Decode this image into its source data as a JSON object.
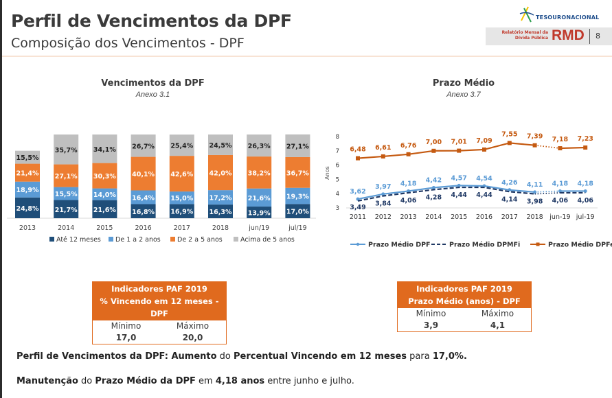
{
  "header": {
    "title": "Perfil de Vencimentos da DPF",
    "subtitle": "Composição dos Vencimentos - DPF",
    "logo_text": "TESOURONACIONAL",
    "report_name_line1": "Relatório Mensal da",
    "report_name_line2": "Dívida Pública",
    "report_acronym": "RMD",
    "page_number": "8"
  },
  "chart_data": [
    {
      "type": "bar",
      "stacked": true,
      "title": "Vencimentos da DPF",
      "subtitle": "Anexo 3.1",
      "categories": [
        "2013",
        "2014",
        "2015",
        "2016",
        "2017",
        "2018",
        "jun/19",
        "jul/19"
      ],
      "series": [
        {
          "name": "Até 12 meses",
          "color": "#1f4e79",
          "values": [
            24.8,
            21.7,
            21.6,
            16.8,
            16.9,
            16.3,
            13.9,
            17.0
          ],
          "labels": [
            "24,8%",
            "21,7%",
            "21,6%",
            "16,8%",
            "16,9%",
            "16,3%",
            "13,9%",
            "17,0%"
          ]
        },
        {
          "name": "De 1 a 2 anos",
          "color": "#5b9bd5",
          "values": [
            18.9,
            15.5,
            14.0,
            16.4,
            15.0,
            17.2,
            21.6,
            19.3
          ],
          "labels": [
            "18,9%",
            "15,5%",
            "14,0%",
            "16,4%",
            "15,0%",
            "17,2%",
            "21,6%",
            "19,3%"
          ]
        },
        {
          "name": "De 2 a 5 anos",
          "color": "#ed7d31",
          "values": [
            21.4,
            27.1,
            30.3,
            40.1,
            42.6,
            42.0,
            38.2,
            36.7
          ],
          "labels": [
            "21,4%",
            "27,1%",
            "30,3%",
            "40,1%",
            "42,6%",
            "42,0%",
            "38,2%",
            "36,7%"
          ]
        },
        {
          "name": "Acima de 5 anos",
          "color": "#bfbfbf",
          "values": [
            15.5,
            35.7,
            34.1,
            26.7,
            25.4,
            24.5,
            26.3,
            27.1
          ],
          "labels": [
            "15,5%",
            "35,7%",
            "34,1%",
            "26,7%",
            "25,4%",
            "24,5%",
            "26,3%",
            "27,1%"
          ]
        }
      ],
      "legend": "bottom",
      "ylim": [
        0,
        100
      ]
    },
    {
      "type": "line",
      "title": "Prazo Médio",
      "subtitle": "Anexo 3.7",
      "ylabel": "Anos",
      "categories": [
        "2011",
        "2012",
        "2013",
        "2014",
        "2015",
        "2016",
        "2017",
        "2018",
        "jun-19",
        "jul-19"
      ],
      "yticks": [
        "3",
        "4",
        "5",
        "6",
        "7",
        "8"
      ],
      "ylim": [
        3,
        8
      ],
      "series": [
        {
          "name": "Prazo Médio DPF",
          "color": "#5b9bd5",
          "style": "solid-marker",
          "values": [
            3.62,
            3.97,
            4.18,
            4.42,
            4.57,
            4.54,
            4.26,
            4.11,
            4.18,
            4.18
          ],
          "labels": [
            "3,62",
            "3,97",
            "4,18",
            "4,42",
            "4,57",
            "4,54",
            "4,26",
            "4,11",
            "4,18",
            "4,18"
          ]
        },
        {
          "name": "Prazo Médio DPMFi",
          "color": "#1f3864",
          "style": "dashed",
          "values": [
            3.49,
            3.84,
            4.06,
            4.28,
            4.44,
            4.44,
            4.14,
            3.98,
            4.06,
            4.06
          ],
          "labels": [
            "3,49",
            "3,84",
            "4,06",
            "4,28",
            "4,44",
            "4,44",
            "4,14",
            "3,98",
            "4,06",
            "4,06"
          ]
        },
        {
          "name": "Prazo Médio DPFe",
          "color": "#c55a11",
          "style": "solid-marker",
          "values": [
            6.48,
            6.61,
            6.76,
            7.0,
            7.01,
            7.09,
            7.55,
            7.39,
            7.18,
            7.23
          ],
          "labels": [
            "6,48",
            "6,61",
            "6,76",
            "7,00",
            "7,01",
            "7,09",
            "7,55",
            "7,39",
            "7,18",
            "7,23"
          ]
        }
      ],
      "gap_dotted_between": [
        "2018",
        "jun-19"
      ],
      "legend": "bottom"
    }
  ],
  "paf_boxes": [
    {
      "head1": "Indicadores PAF 2019",
      "head2": "% Vincendo em 12 meses - DPF",
      "min_label": "Mínimo",
      "max_label": "Máximo",
      "min_value": "17,0",
      "max_value": "20,0"
    },
    {
      "head1": "Indicadores PAF 2019",
      "head2": "Prazo Médio (anos) - DPF",
      "min_label": "Mínimo",
      "max_label": "Máximo",
      "min_value": "3,9",
      "max_value": "4,1"
    }
  ],
  "summary": {
    "line1": [
      {
        "t": "Perfil de Vencimentos da DPF: ",
        "b": true
      },
      {
        "t": "Aumento",
        "b": true
      },
      {
        "t": " do ",
        "b": false
      },
      {
        "t": "Percentual Vincendo em 12 meses",
        "b": true
      },
      {
        "t": " para ",
        "b": false
      },
      {
        "t": "17,0%.",
        "b": true
      }
    ],
    "line2": [
      {
        "t": "Manutenção",
        "b": true
      },
      {
        "t": " do ",
        "b": false
      },
      {
        "t": "Prazo Médio da DPF",
        "b": true
      },
      {
        "t": " em ",
        "b": false
      },
      {
        "t": "4,18 anos",
        "b": true
      },
      {
        "t": " entre junho e julho.",
        "b": false
      }
    ]
  }
}
